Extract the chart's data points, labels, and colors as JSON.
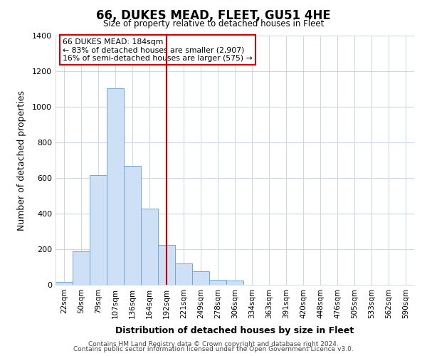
{
  "title": "66, DUKES MEAD, FLEET, GU51 4HE",
  "subtitle": "Size of property relative to detached houses in Fleet",
  "xlabel": "Distribution of detached houses by size in Fleet",
  "ylabel": "Number of detached properties",
  "bar_labels": [
    "22sqm",
    "50sqm",
    "79sqm",
    "107sqm",
    "136sqm",
    "164sqm",
    "192sqm",
    "221sqm",
    "249sqm",
    "278sqm",
    "306sqm",
    "334sqm",
    "363sqm",
    "391sqm",
    "420sqm",
    "448sqm",
    "476sqm",
    "505sqm",
    "533sqm",
    "562sqm",
    "590sqm"
  ],
  "bar_values": [
    15,
    190,
    615,
    1105,
    670,
    430,
    225,
    120,
    75,
    30,
    25,
    0,
    0,
    0,
    0,
    0,
    0,
    0,
    0,
    0,
    0
  ],
  "bar_color": "#cde0f5",
  "bar_edgecolor": "#6fa8d8",
  "vline_x": 6.0,
  "vline_color": "#cc0000",
  "ylim": [
    0,
    1400
  ],
  "yticks": [
    0,
    200,
    400,
    600,
    800,
    1000,
    1200,
    1400
  ],
  "annotation_title": "66 DUKES MEAD: 184sqm",
  "annotation_line1": "← 83% of detached houses are smaller (2,907)",
  "annotation_line2": "16% of semi-detached houses are larger (575) →",
  "annotation_box_color": "#cc0000",
  "footer1": "Contains HM Land Registry data © Crown copyright and database right 2024.",
  "footer2": "Contains public sector information licensed under the Open Government Licence v3.0.",
  "background_color": "#ffffff",
  "grid_color": "#cdd9eb"
}
